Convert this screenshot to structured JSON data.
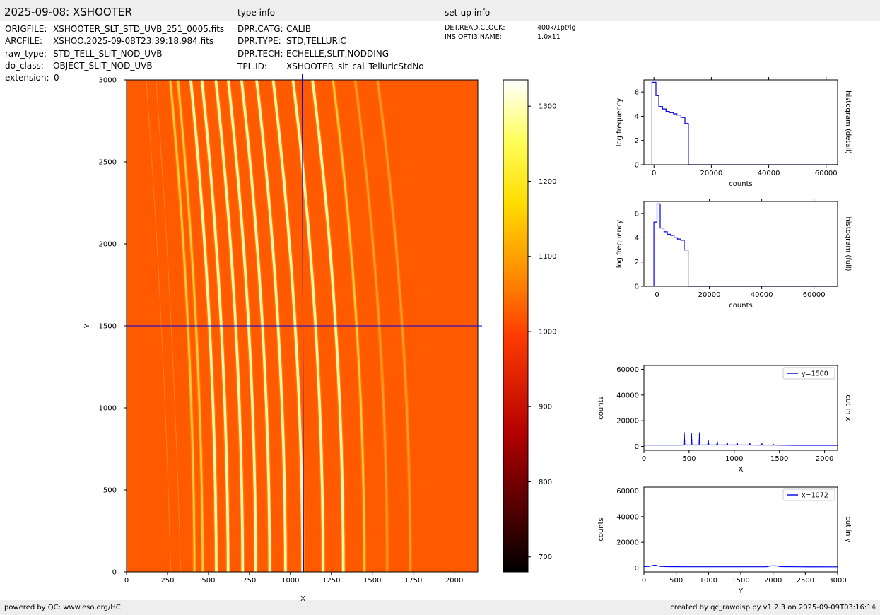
{
  "header": {
    "title": "2025-09-08: XSHOOTER",
    "type_info_label": "type info",
    "setup_info_label": "set-up info"
  },
  "file_info": [
    {
      "key": "ORIGFILE:",
      "value": "XSHOOTER_SLT_STD_UVB_251_0005.fits"
    },
    {
      "key": "ARCFILE:",
      "value": "XSHOO.2025-09-08T23:39:18.984.fits"
    },
    {
      "key": "raw_type:",
      "value": "STD_TELL_SLIT_NOD_UVB"
    },
    {
      "key": "do_class:",
      "value": "OBJECT_SLIT_NOD_UVB"
    },
    {
      "key": "extension:",
      "value": "0"
    }
  ],
  "type_info": [
    {
      "key": "DPR.CATG:",
      "value": "CALIB"
    },
    {
      "key": "DPR.TYPE:",
      "value": "STD,TELLURIC"
    },
    {
      "key": "DPR.TECH:",
      "value": "ECHELLE,SLIT,NODDING"
    },
    {
      "key": "TPL.ID:",
      "value": "XSHOOTER_slt_cal_TelluricStdNo"
    }
  ],
  "setup_info": [
    {
      "key": "DET.READ.CLOCK:",
      "value": "400k/1pt/lg"
    },
    {
      "key": "INS.OPTI3.NAME:",
      "value": "1.0x11"
    }
  ],
  "footer": {
    "left": "powered by QC: www.eso.org/HC",
    "right": "created by qc_rawdisp.py v1.2.3 on 2025-09-09T03:16:14"
  },
  "colors": {
    "line": "#0000ee",
    "image_bg": "#ff5a00",
    "header_bg": "#eeeeee"
  },
  "chart_data": [
    {
      "type": "heatmap",
      "name": "image",
      "xlabel": "X",
      "ylabel": "Y",
      "xlim": [
        0,
        2144
      ],
      "ylim": [
        0,
        3000
      ],
      "xticks": [
        0,
        250,
        500,
        750,
        1000,
        1250,
        1500,
        1750,
        2000
      ],
      "yticks": [
        0,
        500,
        1000,
        1500,
        2000,
        2500,
        3000
      ],
      "crosshair": {
        "x": 1072,
        "y": 1500
      },
      "orders_x_at_y0": [
        1732,
        1591,
        1452,
        1323,
        1200,
        1075,
        970,
        874,
        789,
        709,
        620,
        548,
        465,
        415
      ],
      "colorbar": {
        "range": [
          680,
          1335
        ],
        "ticks": [
          700,
          800,
          900,
          1000,
          1100,
          1200,
          1300
        ]
      }
    },
    {
      "type": "line",
      "name": "histogram-detail",
      "xlabel": "counts",
      "ylabel": "log frequency",
      "side_label": "histogram (detail)",
      "xlim": [
        -3500,
        64000
      ],
      "ylim": [
        0,
        7
      ],
      "xticks": [
        0,
        20000,
        40000,
        60000
      ],
      "yticks": [
        0,
        2,
        4,
        6
      ],
      "x": [
        -700,
        -700,
        700,
        700,
        1700,
        1700,
        3000,
        3000,
        4200,
        4200,
        5400,
        5400,
        6800,
        6800,
        8000,
        8000,
        9400,
        9400,
        10800,
        10800,
        12000,
        12000,
        64000
      ],
      "y": [
        0,
        6.8,
        6.8,
        5.7,
        5.7,
        4.8,
        4.8,
        4.6,
        4.6,
        4.4,
        4.4,
        4.3,
        4.3,
        4.2,
        4.2,
        4.1,
        4.1,
        3.9,
        3.9,
        3.4,
        3.4,
        0,
        0
      ]
    },
    {
      "type": "line",
      "name": "histogram-full",
      "xlabel": "counts",
      "ylabel": "log frequency",
      "side_label": "histogram (full)",
      "xlim": [
        -5000,
        69000
      ],
      "ylim": [
        0,
        7
      ],
      "xticks": [
        0,
        20000,
        40000,
        60000
      ],
      "yticks": [
        0,
        2,
        4,
        6
      ],
      "x": [
        -1200,
        -1200,
        0,
        0,
        1200,
        1200,
        2700,
        2700,
        3900,
        3900,
        5200,
        5200,
        6500,
        6500,
        7800,
        7800,
        9100,
        9100,
        10400,
        10400,
        11900,
        11900,
        69000
      ],
      "y": [
        0,
        5.3,
        5.3,
        6.8,
        6.8,
        4.8,
        4.8,
        4.5,
        4.5,
        4.3,
        4.3,
        4.2,
        4.2,
        4.0,
        4.0,
        3.9,
        3.9,
        3.8,
        3.8,
        3.0,
        3.0,
        0,
        0
      ]
    },
    {
      "type": "line",
      "name": "cut-in-x",
      "xlabel": "X",
      "ylabel": "counts",
      "side_label": "cut in x",
      "legend": "y=1500",
      "xlim": [
        0,
        2144
      ],
      "ylim": [
        -3000,
        63000
      ],
      "xticks": [
        0,
        500,
        1000,
        1500,
        2000
      ],
      "yticks": [
        0,
        20000,
        40000,
        60000
      ],
      "x": [
        0,
        400,
        440,
        446,
        452,
        480,
        520,
        526,
        532,
        570,
        610,
        616,
        622,
        680,
        706,
        712,
        718,
        790,
        806,
        812,
        818,
        900,
        916,
        922,
        928,
        1010,
        1026,
        1032,
        1038,
        1150,
        1166,
        1172,
        1178,
        1290,
        1300,
        1306,
        1312,
        1420,
        1430,
        1436,
        1442,
        1600,
        1700,
        2144
      ],
      "y": [
        1000,
        1000,
        1100,
        11000,
        1200,
        1100,
        1200,
        10500,
        1200,
        1100,
        1200,
        11000,
        1200,
        1100,
        1200,
        5000,
        1200,
        1100,
        1200,
        3800,
        1200,
        1100,
        1200,
        3200,
        1200,
        1100,
        1200,
        3000,
        1200,
        1100,
        1200,
        2200,
        1100,
        1050,
        1100,
        2000,
        1100,
        1050,
        1100,
        1500,
        1000,
        900,
        850,
        850
      ]
    },
    {
      "type": "line",
      "name": "cut-in-y",
      "xlabel": "Y",
      "ylabel": "counts",
      "side_label": "cut in y",
      "legend": "x=1072",
      "xlim": [
        0,
        3000
      ],
      "ylim": [
        -3000,
        63000
      ],
      "xticks": [
        0,
        500,
        1000,
        1500,
        2000,
        2500,
        3000
      ],
      "yticks": [
        0,
        20000,
        40000,
        60000
      ],
      "x": [
        0,
        80,
        130,
        170,
        210,
        260,
        350,
        600,
        1000,
        1500,
        1900,
        1960,
        2000,
        2060,
        2120,
        2400,
        3000
      ],
      "y": [
        1100,
        1300,
        1900,
        2300,
        1800,
        1300,
        1100,
        1000,
        1000,
        1000,
        1050,
        1700,
        1800,
        1700,
        1100,
        1000,
        950
      ]
    }
  ]
}
